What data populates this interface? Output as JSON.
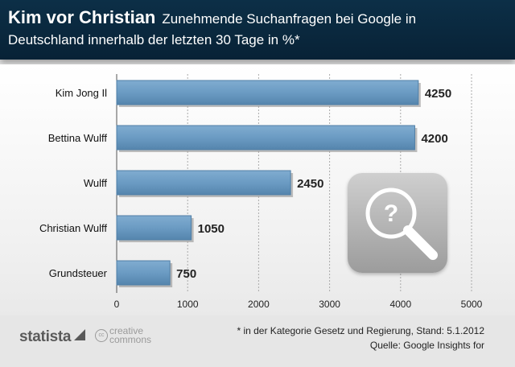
{
  "header": {
    "title": "Kim vor Christian",
    "subtitle_line1": "Zunehmende Suchanfragen bei Google in",
    "subtitle_line2": "Deutschland innerhalb der letzten 30 Tage in %*"
  },
  "footer": {
    "brand": "statista",
    "license_line1": "creative",
    "license_line2": "commons",
    "license_badge": "cc",
    "note": "* in der Kategorie Gesetz und Regierung, Stand: 5.1.2012",
    "source": "Quelle: Google Insights for"
  },
  "icons": {
    "search": "magnifying-glass-question-icon"
  },
  "colors": {
    "bar": "#6b9bc3",
    "header_bg": "#0b2b42",
    "grid": "#aaaaaa"
  },
  "chart_data": {
    "type": "bar",
    "orientation": "horizontal",
    "categories": [
      "Kim Jong Il",
      "Bettina Wulff",
      "Wulff",
      "Christian Wulff",
      "Grundsteuer"
    ],
    "values": [
      4250,
      4200,
      2450,
      1050,
      750
    ],
    "xlim": [
      0,
      5000
    ],
    "xticks": [
      0,
      1000,
      2000,
      3000,
      4000,
      5000
    ],
    "grid": "vertical-dotted",
    "data_labels": true
  }
}
